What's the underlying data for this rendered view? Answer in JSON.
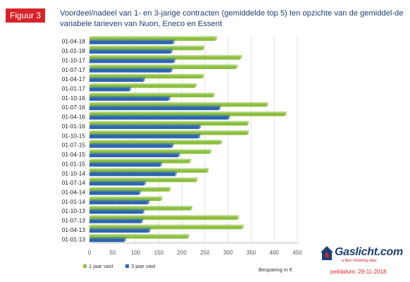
{
  "figure_tag": "Figuur 3",
  "title": "Voordeel/nadeel van 1- en 3-jarige contracten (gemiddelde top 5) ten opzichte van de gemiddel-de variabele tarieven van Nuon, Eneco en Essent",
  "brand": {
    "name": "Gaslicht.com",
    "tagline": "a Ben Woldring idea",
    "logo_icon": "house-flame-icon"
  },
  "peildatum": "peildatum: 29-11-2018",
  "chart_data": {
    "type": "bar",
    "orientation": "horizontal",
    "categories": [
      "01-04-18",
      "01-01-18",
      "01-10-17",
      "01-07-17",
      "01-04-17",
      "01-01-17",
      "01-10-16",
      "01-07-16",
      "01-04-16",
      "01-01-16",
      "01-10-15",
      "01-07-15",
      "01-04-15",
      "01-01-15",
      "01-10-14",
      "01-07-14",
      "01-04-14",
      "01-01-14",
      "01-10-13",
      "01-07-13",
      "01-04-13",
      "01-01-13"
    ],
    "series": [
      {
        "name": "1 jaar vast",
        "color": "#8cbf3f",
        "values": [
          272,
          245,
          326,
          317,
          244,
          228,
          267,
          383,
          423,
          341,
          341,
          283,
          260,
          216,
          254,
          230,
          172,
          154,
          219,
          320,
          330,
          212
        ]
      },
      {
        "name": "3 jaar vast",
        "color": "#2d65b0",
        "values": [
          180,
          176,
          182,
          176,
          116,
          86,
          171,
          280,
          300,
          237,
          236,
          178,
          192,
          153,
          185,
          118,
          107,
          126,
          115,
          112,
          128,
          75
        ]
      }
    ],
    "xlabel": "Besparing in €",
    "ylabel": "",
    "xlim": [
      0,
      450
    ],
    "xticks": [
      0,
      50,
      100,
      150,
      200,
      250,
      300,
      350,
      400,
      450
    ],
    "grid": true,
    "legend_position": "bottom-left"
  }
}
